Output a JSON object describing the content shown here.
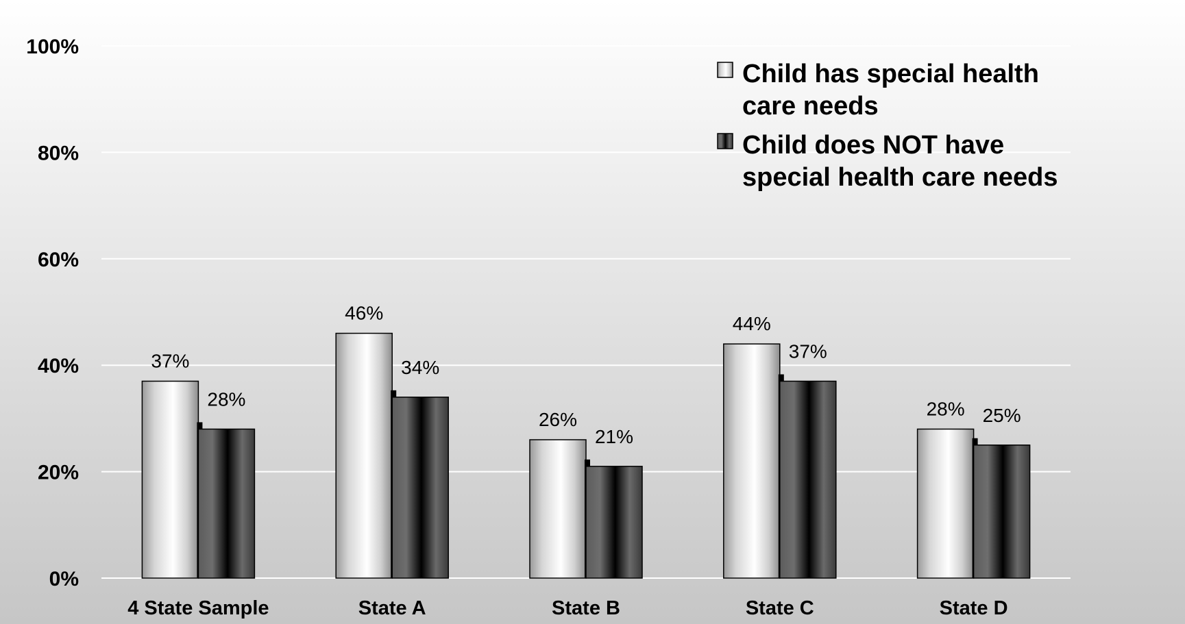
{
  "chart_data": {
    "type": "bar",
    "title": "",
    "xlabel": "",
    "ylabel": "",
    "ylim": [
      0,
      100
    ],
    "y_ticks": [
      0,
      20,
      40,
      60,
      80,
      100
    ],
    "y_tick_labels": [
      "0%",
      "20%",
      "40%",
      "60%",
      "80%",
      "100%"
    ],
    "grid": true,
    "legend_position": "top-right",
    "categories": [
      "4 State Sample",
      "State A",
      "State B",
      "State C",
      "State D"
    ],
    "series": [
      {
        "name": "Child has special health care needs",
        "legend_lines": [
          "Child has special health",
          "care needs"
        ],
        "values": [
          37,
          46,
          26,
          44,
          28
        ],
        "value_labels": [
          "37%",
          "46%",
          "26%",
          "44%",
          "28%"
        ],
        "color": "#e6e6e6"
      },
      {
        "name": "Child does NOT have special health care needs",
        "legend_lines": [
          "Child does NOT have",
          "special health care needs"
        ],
        "values": [
          28,
          34,
          21,
          37,
          25
        ],
        "value_labels": [
          "28%",
          "34%",
          "21%",
          "37%",
          "25%"
        ],
        "color": "#4a4a4a"
      }
    ]
  }
}
